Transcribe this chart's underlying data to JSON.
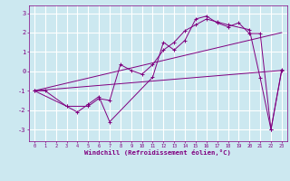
{
  "xlabel": "Windchill (Refroidissement éolien,°C)",
  "bg_color": "#cce8f0",
  "line_color": "#800080",
  "grid_color": "#ffffff",
  "xlim": [
    -0.5,
    23.5
  ],
  "ylim": [
    -3.6,
    3.4
  ],
  "yticks": [
    -3,
    -2,
    -1,
    0,
    1,
    2,
    3
  ],
  "xticks": [
    0,
    1,
    2,
    3,
    4,
    5,
    6,
    7,
    8,
    9,
    10,
    11,
    12,
    13,
    14,
    15,
    16,
    17,
    18,
    19,
    20,
    21,
    22,
    23
  ],
  "series": [
    {
      "x": [
        0,
        1,
        3,
        4,
        5,
        6,
        7,
        11,
        12,
        13,
        14,
        15,
        16,
        17,
        18,
        19,
        20,
        21,
        22,
        23
      ],
      "y": [
        -1.0,
        -1.0,
        -1.8,
        -2.1,
        -1.7,
        -1.3,
        -2.6,
        -0.3,
        1.5,
        1.1,
        1.6,
        2.7,
        2.85,
        2.5,
        2.3,
        2.5,
        1.95,
        1.95,
        -3.0,
        0.1
      ],
      "markers": true
    },
    {
      "x": [
        0,
        3,
        5,
        6,
        7,
        8,
        9,
        10,
        11,
        12,
        13,
        14,
        15,
        16,
        17,
        18,
        20,
        21,
        22,
        23
      ],
      "y": [
        -1.0,
        -1.8,
        -1.8,
        -1.4,
        -1.5,
        0.35,
        0.05,
        -0.15,
        0.35,
        1.1,
        1.5,
        2.1,
        2.4,
        2.7,
        2.55,
        2.4,
        2.15,
        -0.35,
        -3.0,
        0.05
      ],
      "markers": true
    },
    {
      "x": [
        0,
        23
      ],
      "y": [
        -1.0,
        0.05
      ],
      "markers": false
    },
    {
      "x": [
        0,
        23
      ],
      "y": [
        -1.0,
        2.0
      ],
      "markers": false
    }
  ]
}
